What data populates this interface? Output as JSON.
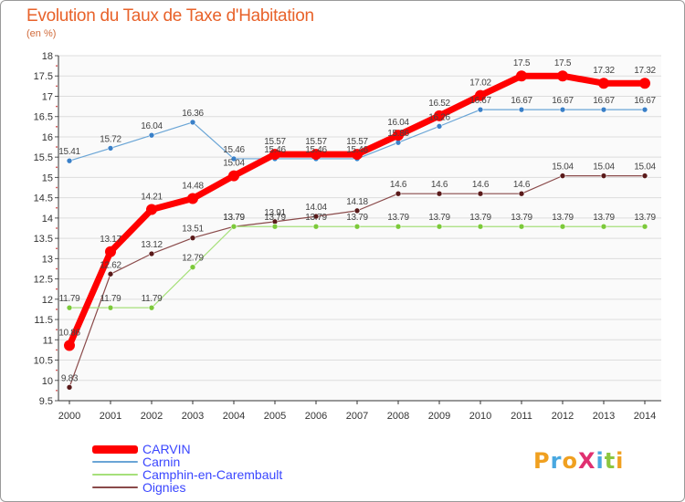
{
  "title": "Evolution du Taux de Taxe d'Habitation",
  "unit": "(en %)",
  "logo": {
    "text": "ProXiti",
    "colors": [
      "#f0a020",
      "#49a8e0",
      "#f0a020",
      "#e03070",
      "#49a8e0",
      "#8cc63f",
      "#f0a020"
    ]
  },
  "chart_data": {
    "type": "line",
    "title": "Evolution du Taux de Taxe d'Habitation",
    "ylabel": "(en %)",
    "xlabel": "",
    "ylim": [
      9.5,
      18
    ],
    "yticks": [
      "9.5",
      "10",
      "10.5",
      "11",
      "11.5",
      "12",
      "12.5",
      "13",
      "13.5",
      "14",
      "14.5",
      "15",
      "15.5",
      "16",
      "16.5",
      "17",
      "17.5",
      "18"
    ],
    "categories": [
      "2000",
      "2001",
      "2002",
      "2003",
      "2004",
      "2005",
      "2006",
      "2007",
      "2008",
      "2009",
      "2010",
      "2011",
      "2012",
      "2013",
      "2014"
    ],
    "grid": "horizontal",
    "legend": "bottom-left",
    "series": [
      {
        "name": "CARVIN",
        "color": "#ff0000",
        "marker": "#ff0000",
        "width": 7,
        "values": [
          10.86,
          13.17,
          14.21,
          14.48,
          15.04,
          15.57,
          15.57,
          15.57,
          16.04,
          16.52,
          17.02,
          17.5,
          17.5,
          17.32,
          17.32
        ],
        "labels": [
          "10.86",
          "13.17",
          "14.21",
          "14.48",
          "15.04",
          "15.57",
          "15.57",
          "15.57",
          "16.04",
          "16.52",
          "17.02",
          "17.5",
          "17.5",
          "17.32",
          "17.32"
        ]
      },
      {
        "name": "Carnin",
        "color": "#6aa5d6",
        "marker": "#3a80c8",
        "width": 1.2,
        "values": [
          15.41,
          15.72,
          16.04,
          16.36,
          15.46,
          15.46,
          15.46,
          15.46,
          15.86,
          16.26,
          16.67,
          16.67,
          16.67,
          16.67,
          16.67
        ],
        "labels": [
          "15.41",
          "15.72",
          "16.04",
          "16.36",
          "15.46",
          "15.46",
          "15.46",
          "15.46",
          "15.86",
          "16.26",
          "16.67",
          "16.67",
          "16.67",
          "16.67",
          "16.67"
        ]
      },
      {
        "name": "Camphin-en-Carembault",
        "color": "#a6e07a",
        "marker": "#7cc93a",
        "width": 1.2,
        "values": [
          11.79,
          11.79,
          11.79,
          12.79,
          13.79,
          13.79,
          13.79,
          13.79,
          13.79,
          13.79,
          13.79,
          13.79,
          13.79,
          13.79,
          13.79
        ],
        "labels": [
          "11.79",
          "11.79",
          "11.79",
          "12.79",
          "13.79",
          "13.79",
          "13.79",
          "13.79",
          "13.79",
          "13.79",
          "13.79",
          "13.79",
          "13.79",
          "13.79",
          "13.79"
        ]
      },
      {
        "name": "Oignies",
        "color": "#8a4a4a",
        "marker": "#5a1a1a",
        "width": 1.2,
        "values": [
          9.83,
          12.62,
          13.12,
          13.51,
          13.79,
          13.91,
          14.04,
          14.18,
          14.6,
          14.6,
          14.6,
          14.6,
          15.04,
          15.04,
          15.04
        ],
        "labels": [
          "9.83",
          "12.62",
          "13.12",
          "13.51",
          "13.79",
          "13.91",
          "14.04",
          "14.18",
          "14.6",
          "14.6",
          "14.6",
          "14.6",
          "15.04",
          "15.04",
          "15.04"
        ]
      }
    ]
  }
}
